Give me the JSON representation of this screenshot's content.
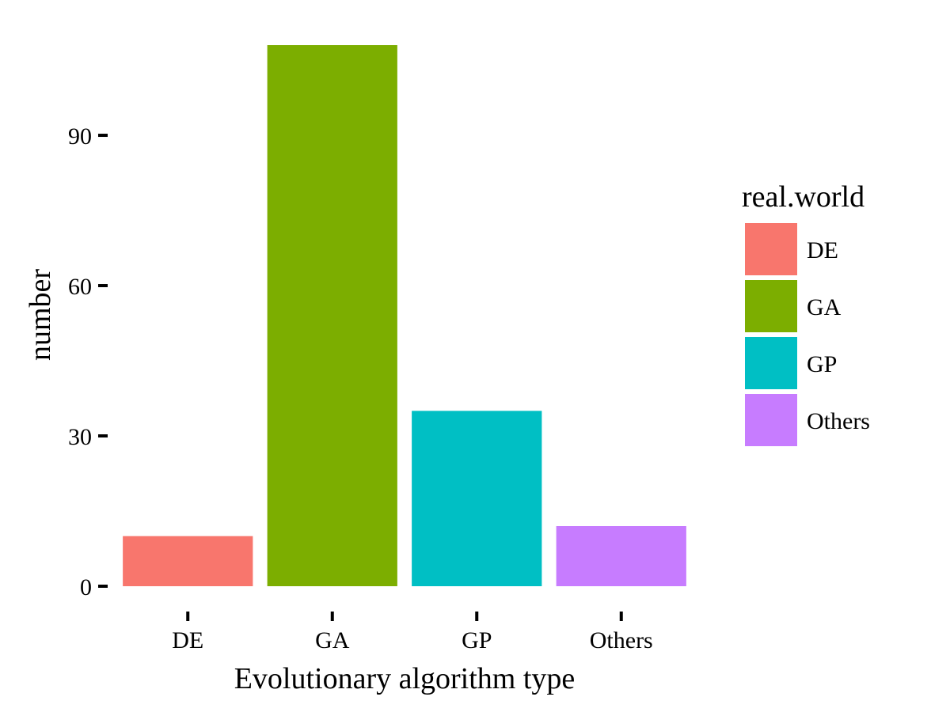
{
  "chart_data": {
    "type": "bar",
    "categories": [
      "DE",
      "GA",
      "GP",
      "Others"
    ],
    "values": [
      10,
      108,
      35,
      12
    ],
    "colors": [
      "#F8766D",
      "#7CAE00",
      "#00BFC4",
      "#C77CFF"
    ],
    "title": "",
    "xlabel": "Evolutionary algorithm type",
    "ylabel": "number",
    "ylim": [
      0,
      108
    ],
    "yticks": [
      0,
      30,
      60,
      90
    ],
    "ytick_labels": [
      "0",
      "30",
      "60",
      "90"
    ],
    "grid": false,
    "legend": {
      "title": "real.world",
      "placement": "right",
      "entries": [
        "DE",
        "GA",
        "GP",
        "Others"
      ]
    }
  }
}
